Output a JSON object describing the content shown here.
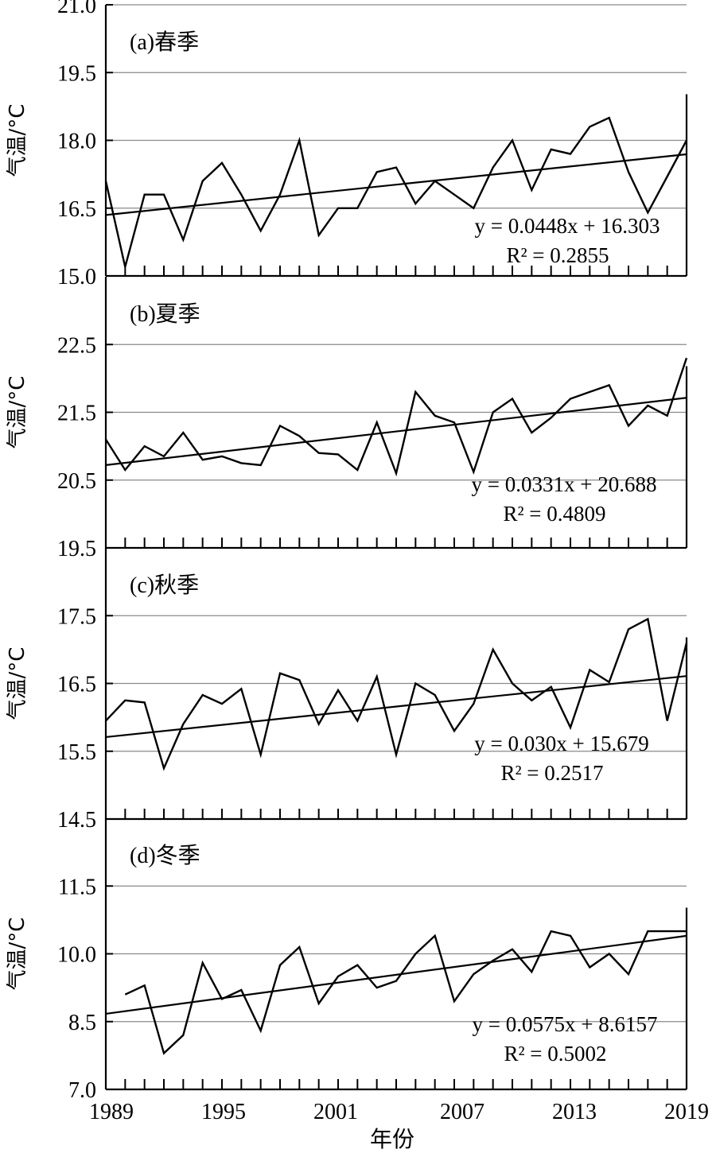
{
  "chart_data": [
    {
      "type": "line",
      "title": "(a)春季",
      "ylabel": "气温/°C",
      "ylim": [
        15.0,
        21.0
      ],
      "yticks": [
        "15.0",
        "16.5",
        "18.0",
        "19.5",
        "21.0"
      ],
      "x": [
        1989,
        1990,
        1991,
        1992,
        1993,
        1994,
        1995,
        1996,
        1997,
        1998,
        1999,
        2000,
        2001,
        2002,
        2003,
        2004,
        2005,
        2006,
        2007,
        2008,
        2009,
        2010,
        2011,
        2012,
        2013,
        2014,
        2015,
        2016,
        2017,
        2018,
        2019
      ],
      "series": [
        {
          "values": [
            17.1,
            15.2,
            16.8,
            16.8,
            15.8,
            17.1,
            17.5,
            16.8,
            16.0,
            16.8,
            18.0,
            15.9,
            16.5,
            16.5,
            17.3,
            17.4,
            16.6,
            17.1,
            16.8,
            16.5,
            17.4,
            18.0,
            16.9,
            17.8,
            17.7,
            18.3,
            18.5,
            17.3,
            16.4,
            17.2,
            18.0
          ]
        }
      ],
      "trend": {
        "slope": 0.0448,
        "intercept": 16.303
      },
      "equation": "y = 0.0448x + 16.303",
      "r2_label": "R² = 0.2855",
      "grid": "horizontal"
    },
    {
      "type": "line",
      "title": "(b)夏季",
      "ylabel": "气温/°C",
      "ylim": [
        19.5,
        23.5
      ],
      "yticks": [
        "19.5",
        "20.5",
        "21.5",
        "22.5"
      ],
      "x": [
        1989,
        1990,
        1991,
        1992,
        1993,
        1994,
        1995,
        1996,
        1997,
        1998,
        1999,
        2000,
        2001,
        2002,
        2003,
        2004,
        2005,
        2006,
        2007,
        2008,
        2009,
        2010,
        2011,
        2012,
        2013,
        2014,
        2015,
        2016,
        2017,
        2018,
        2019
      ],
      "series": [
        {
          "values": [
            21.1,
            20.65,
            21.0,
            20.85,
            21.2,
            20.8,
            20.85,
            20.75,
            20.72,
            21.3,
            21.15,
            20.9,
            20.88,
            20.65,
            21.35,
            20.6,
            21.8,
            21.45,
            21.35,
            20.62,
            21.5,
            21.7,
            21.2,
            21.42,
            21.7,
            21.8,
            21.9,
            21.3,
            21.6,
            21.45,
            22.3
          ]
        }
      ],
      "trend": {
        "slope": 0.0331,
        "intercept": 20.688
      },
      "equation": "y = 0.0331x + 20.688",
      "r2_label": "R² = 0.4809",
      "grid": "horizontal"
    },
    {
      "type": "line",
      "title": "(c)秋季",
      "ylabel": "气温/°C",
      "ylim": [
        14.5,
        18.5
      ],
      "yticks": [
        "14.5",
        "15.5",
        "16.5",
        "17.5"
      ],
      "x": [
        1989,
        1990,
        1991,
        1992,
        1993,
        1994,
        1995,
        1996,
        1997,
        1998,
        1999,
        2000,
        2001,
        2002,
        2003,
        2004,
        2005,
        2006,
        2007,
        2008,
        2009,
        2010,
        2011,
        2012,
        2013,
        2014,
        2015,
        2016,
        2017,
        2018,
        2019
      ],
      "series": [
        {
          "values": [
            15.95,
            16.25,
            16.22,
            15.25,
            15.9,
            16.33,
            16.2,
            16.42,
            15.45,
            16.65,
            16.55,
            15.9,
            16.4,
            15.95,
            16.6,
            15.45,
            16.5,
            16.33,
            15.8,
            16.2,
            17.0,
            16.5,
            16.25,
            16.45,
            15.85,
            16.7,
            16.52,
            17.3,
            17.45,
            15.95,
            17.1
          ]
        }
      ],
      "trend": {
        "slope": 0.03,
        "intercept": 15.679
      },
      "equation": "y = 0.030x + 15.679",
      "r2_label": "R² = 0.2517",
      "grid": "horizontal"
    },
    {
      "type": "line",
      "title": "(d)冬季",
      "ylabel": "气温/°C",
      "ylim": [
        7.0,
        13.0
      ],
      "yticks": [
        "7.0",
        "8.5",
        "10.0",
        "11.5"
      ],
      "xlabel": "年份",
      "xticks": [
        "1989",
        "1995",
        "2001",
        "2007",
        "2013",
        "2019"
      ],
      "x": [
        1990,
        1991,
        1992,
        1993,
        1994,
        1995,
        1996,
        1997,
        1998,
        1999,
        2000,
        2001,
        2002,
        2003,
        2004,
        2005,
        2006,
        2007,
        2008,
        2009,
        2010,
        2011,
        2012,
        2013,
        2014,
        2015,
        2016,
        2017,
        2018,
        2019
      ],
      "series": [
        {
          "values": [
            9.1,
            9.3,
            7.8,
            8.2,
            9.8,
            9.0,
            9.2,
            8.3,
            9.75,
            10.15,
            8.9,
            9.5,
            9.75,
            9.25,
            9.4,
            10.0,
            10.4,
            8.95,
            9.55,
            9.85,
            10.1,
            9.6,
            10.5,
            10.4,
            9.7,
            10.0,
            9.55,
            10.5,
            10.5,
            10.5
          ]
        }
      ],
      "trend": {
        "slope": 0.0575,
        "intercept": 8.6157
      },
      "equation": "y = 0.0575x + 8.6157",
      "r2_label": "R² = 0.5002",
      "grid": "horizontal"
    }
  ]
}
